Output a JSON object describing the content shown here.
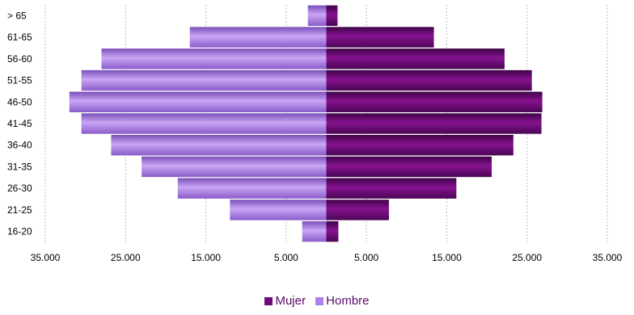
{
  "chart_data": {
    "type": "bar",
    "orientation": "horizontal",
    "layout": "population-pyramid",
    "categories": [
      "16-20",
      "21-25",
      "26-30",
      "31-35",
      "36-40",
      "41-45",
      "46-50",
      "51-55",
      "56-60",
      "61-65",
      "> 65"
    ],
    "series": [
      {
        "name": "Mujer",
        "side": "right",
        "color": "#6e0a78",
        "values": [
          1500,
          7800,
          16200,
          20600,
          23300,
          26800,
          26900,
          25600,
          22200,
          13400,
          1400
        ]
      },
      {
        "name": "Hombre",
        "side": "left",
        "color": "#b07ee8",
        "values": [
          3000,
          12000,
          18500,
          23000,
          26800,
          30500,
          32000,
          30500,
          28000,
          17000,
          2300
        ]
      }
    ],
    "xticks": [
      "35.000",
      "25.000",
      "15.000",
      "5.000",
      "5.000",
      "15.000",
      "25.000",
      "35.000"
    ],
    "xtick_values": [
      -35000,
      -25000,
      -15000,
      -5000,
      5000,
      15000,
      25000,
      35000
    ],
    "xlim": [
      -35000,
      35000
    ],
    "grid": "vertical-dotted",
    "legend_position": "bottom"
  }
}
